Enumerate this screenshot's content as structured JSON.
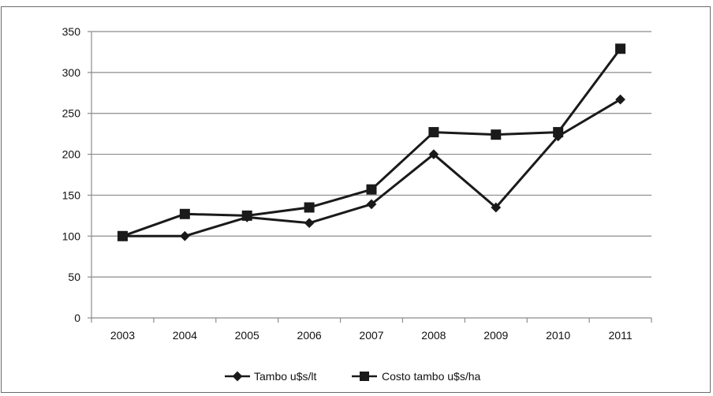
{
  "chart_data": {
    "type": "line",
    "title": "",
    "xlabel": "",
    "ylabel": "",
    "categories": [
      "2003",
      "2004",
      "2005",
      "2006",
      "2007",
      "2008",
      "2009",
      "2010",
      "2011"
    ],
    "ylim": [
      0,
      350
    ],
    "yticks": [
      0,
      50,
      100,
      150,
      200,
      250,
      300,
      350
    ],
    "grid": "horizontal",
    "legend_position": "bottom",
    "series": [
      {
        "name": "Tambo u$s/lt",
        "marker": "diamond",
        "color": "#1a1a1a",
        "values": [
          100,
          100,
          123,
          116,
          139,
          200,
          135,
          222,
          267
        ]
      },
      {
        "name": "Costo tambo u$s/ha",
        "marker": "square",
        "color": "#1a1a1a",
        "values": [
          100,
          127,
          125,
          135,
          157,
          227,
          224,
          227,
          329
        ]
      }
    ]
  }
}
